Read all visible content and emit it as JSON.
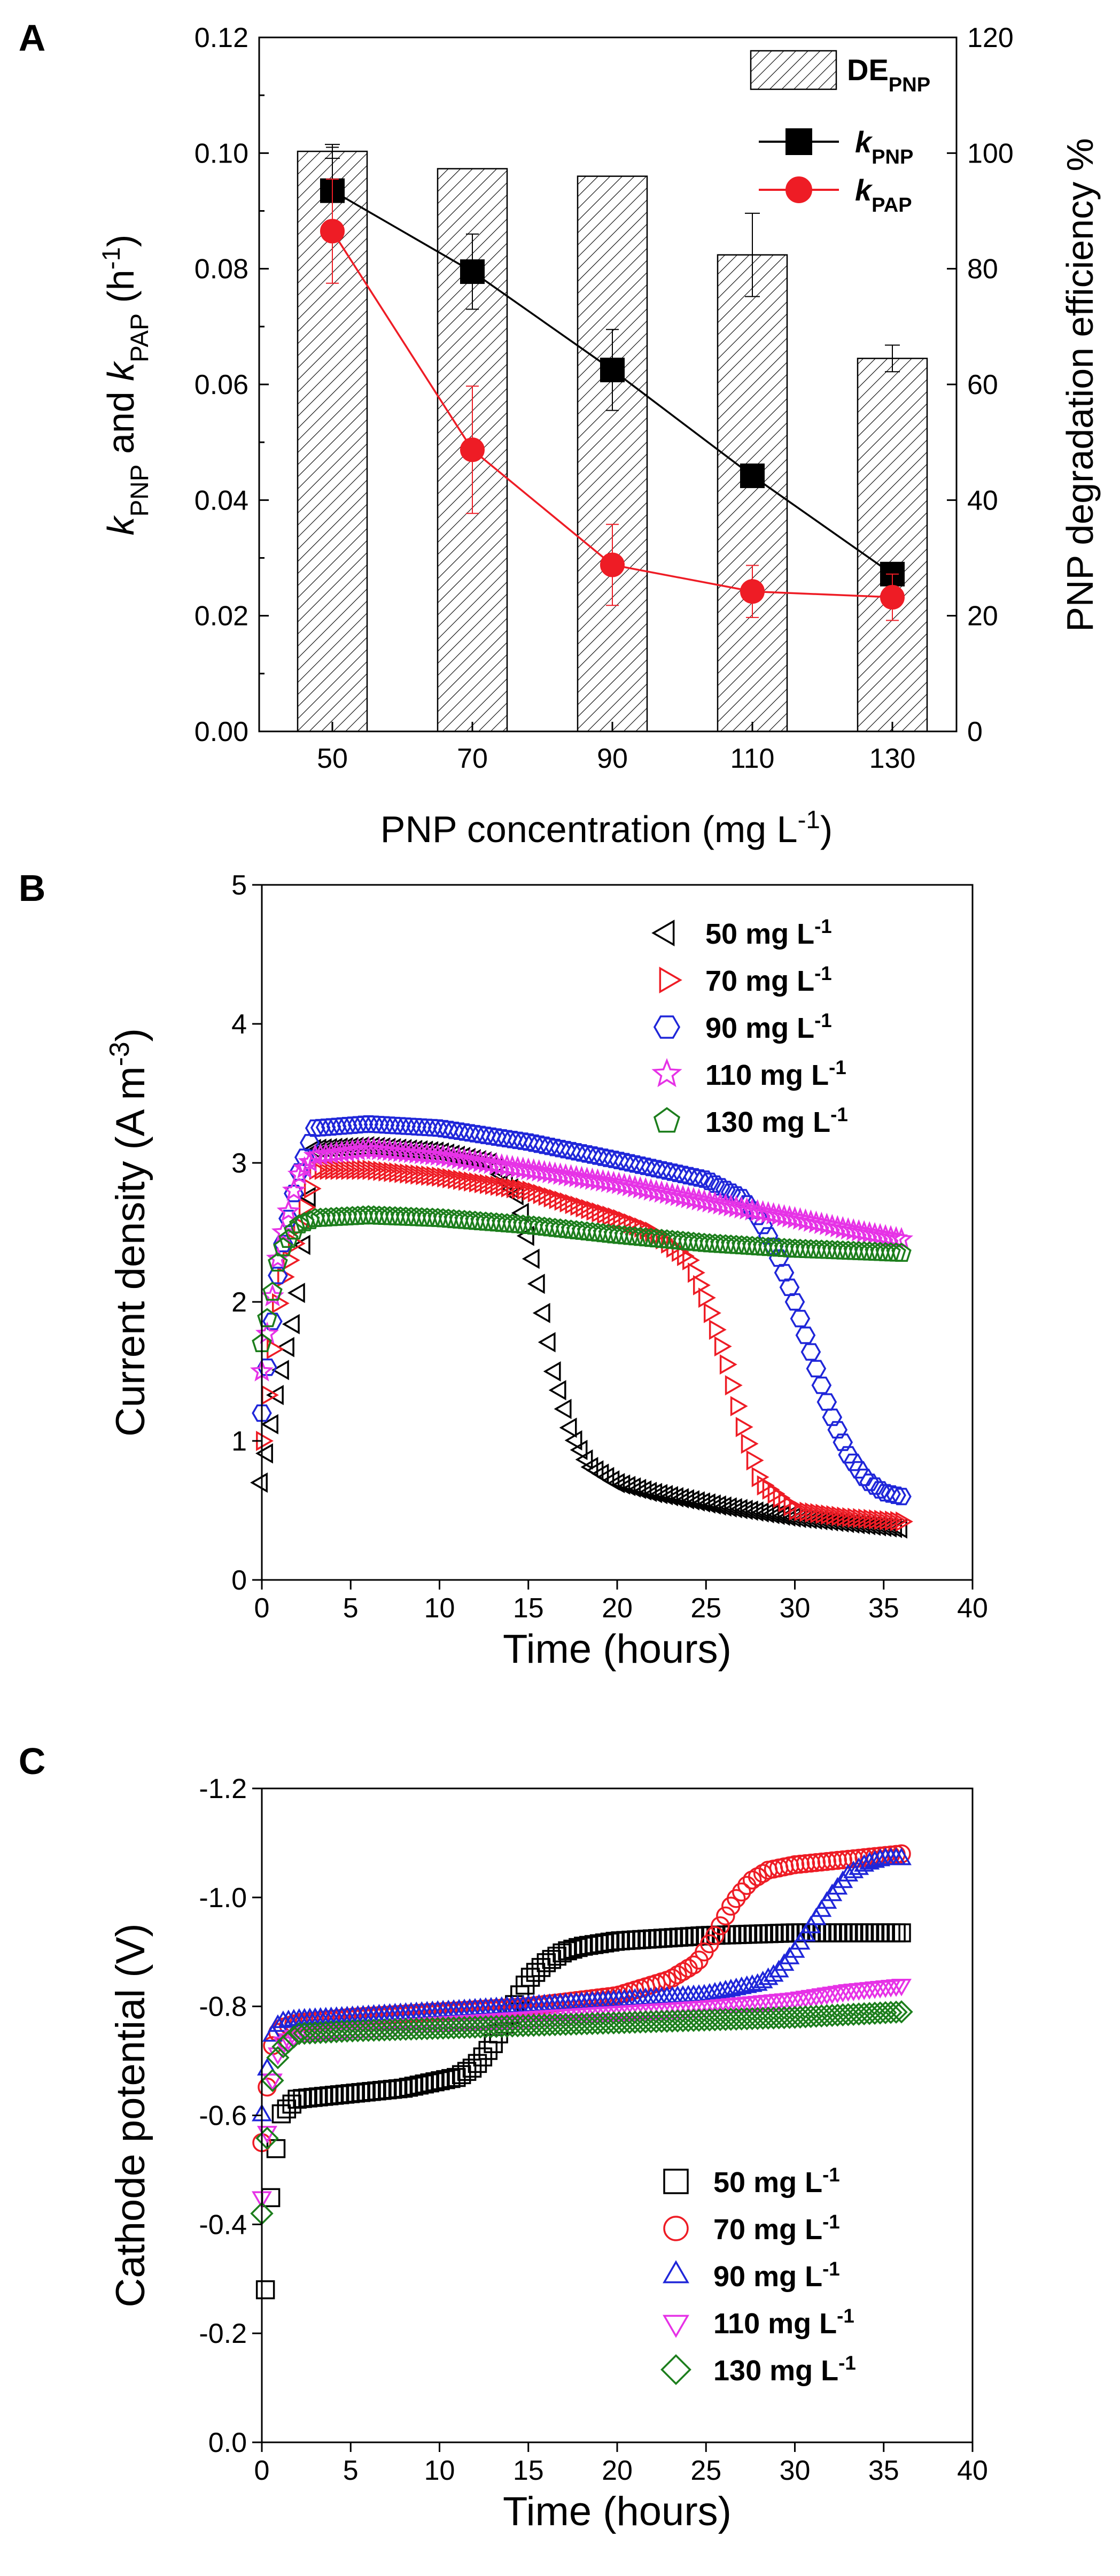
{
  "colors": {
    "axis": "#000000",
    "black": "#000000",
    "red": "#ee1c25",
    "blue": "#1f26d9",
    "magenta": "#e632e6",
    "green": "#1c7e1c"
  },
  "panel_labels": [
    "A",
    "B",
    "C"
  ],
  "chart_data": [
    {
      "id": "A",
      "type": "bar+line",
      "panel_label": "A",
      "xlabel": "PNP concentration (mg L⁻¹)",
      "ylabel_left": "kPNP and kPAP (h⁻¹)",
      "ylabel_left_parts": [
        "k",
        "PNP",
        " and ",
        "k",
        "PAP",
        " (h",
        "-1",
        ")"
      ],
      "ylabel_right": "PNP degradation efficiency %",
      "categories": [
        "50",
        "70",
        "90",
        "110",
        "130"
      ],
      "ylim_left": [
        0,
        0.12
      ],
      "yticks_left": [
        "0.00",
        "0.02",
        "0.04",
        "0.06",
        "0.08",
        "0.10",
        "0.12"
      ],
      "ylim_right": [
        0,
        120
      ],
      "yticks_right": [
        "0",
        "20",
        "40",
        "60",
        "80",
        "100",
        "120"
      ],
      "bars": {
        "name": "DE_PNP",
        "legend_main": "DE",
        "legend_sub": "PNP",
        "values": [
          100.3,
          97.3,
          96.0,
          82.4,
          64.5
        ],
        "errors": [
          1.2,
          0,
          0,
          7.2,
          2.3
        ]
      },
      "series": [
        {
          "name": "k_PNP",
          "legend_main": "k",
          "legend_sub": "PNP",
          "color": "#000000",
          "marker": "square",
          "values": [
            0.0935,
            0.0795,
            0.0625,
            0.0442,
            0.0272
          ],
          "errors": [
            0.0075,
            0.0065,
            0.007,
            0,
            0
          ]
        },
        {
          "name": "k_PAP",
          "legend_main": "k",
          "legend_sub": "PAP",
          "color": "#ee1c25",
          "marker": "circle",
          "values": [
            0.0865,
            0.0487,
            0.0288,
            0.0242,
            0.0232
          ],
          "errors": [
            0.009,
            0.011,
            0.007,
            0.0045,
            0.004
          ]
        }
      ]
    },
    {
      "id": "B",
      "type": "scatter",
      "panel_label": "B",
      "xlabel": "Time (hours)",
      "ylabel": "Current density (A m⁻³)",
      "ylabel_parts": [
        "Current density (A m",
        "-3",
        ")"
      ],
      "xlim": [
        0,
        40
      ],
      "ylim": [
        0,
        5
      ],
      "xticks": [
        "0",
        "5",
        "10",
        "15",
        "20",
        "25",
        "30",
        "35",
        "40"
      ],
      "yticks": [
        "0",
        "1",
        "2",
        "3",
        "4",
        "5"
      ],
      "legend": [
        "50 mg L⁻¹",
        "70 mg L⁻¹",
        "90 mg L⁻¹",
        "110 mg L⁻¹",
        "130 mg L⁻¹"
      ],
      "legend_unit_sup": "-1",
      "series": [
        {
          "name": "50 mg L-1",
          "legend_main": "50 mg L",
          "color": "#000000",
          "marker": "triangle-left",
          "x": [
            0,
            1,
            2,
            3,
            6,
            10,
            13,
            14.5,
            15.5,
            16.5,
            17.5,
            18.5,
            20,
            22,
            24,
            26,
            30,
            36
          ],
          "y": [
            0.7,
            1.4,
            1.95,
            3.1,
            3.12,
            3.08,
            3.0,
            2.75,
            2.2,
            1.5,
            1.05,
            0.82,
            0.7,
            0.63,
            0.58,
            0.53,
            0.45,
            0.37
          ]
        },
        {
          "name": "70 mg L-1",
          "legend_main": "70 mg L",
          "color": "#ee1c25",
          "marker": "triangle-right",
          "x": [
            0,
            1,
            2,
            3,
            6,
            10,
            15,
            20,
            22,
            24,
            25,
            26,
            27,
            28,
            30,
            33,
            36
          ],
          "y": [
            1.0,
            2.1,
            2.5,
            2.95,
            2.95,
            2.9,
            2.8,
            2.6,
            2.5,
            2.3,
            2.0,
            1.6,
            1.1,
            0.7,
            0.5,
            0.45,
            0.42
          ]
        },
        {
          "name": "90 mg L-1",
          "legend_main": "90 mg L",
          "color": "#1f26d9",
          "marker": "hexagon",
          "x": [
            0,
            1,
            2,
            3,
            6,
            10,
            15,
            20,
            25,
            27,
            28,
            29,
            30,
            31,
            32,
            33,
            34,
            35,
            36
          ],
          "y": [
            1.2,
            2.3,
            2.9,
            3.25,
            3.28,
            3.25,
            3.15,
            3.02,
            2.88,
            2.75,
            2.6,
            2.35,
            2.0,
            1.6,
            1.2,
            0.9,
            0.72,
            0.63,
            0.6
          ]
        },
        {
          "name": "110 mg L-1",
          "legend_main": "110 mg L",
          "color": "#e632e6",
          "marker": "star",
          "x": [
            0,
            1,
            2,
            3,
            6,
            10,
            15,
            20,
            25,
            30,
            33,
            36
          ],
          "y": [
            1.5,
            2.4,
            2.9,
            3.05,
            3.1,
            3.05,
            2.95,
            2.85,
            2.72,
            2.6,
            2.52,
            2.45
          ]
        },
        {
          "name": "130 mg L-1",
          "legend_main": "130 mg L",
          "color": "#1c7e1c",
          "marker": "pentagon",
          "x": [
            0,
            0.5,
            1,
            2,
            3,
            6,
            10,
            15,
            20,
            25,
            30,
            36
          ],
          "y": [
            1.7,
            2.0,
            2.35,
            2.55,
            2.6,
            2.62,
            2.6,
            2.55,
            2.48,
            2.42,
            2.38,
            2.35
          ]
        }
      ]
    },
    {
      "id": "C",
      "type": "scatter",
      "panel_label": "C",
      "xlabel": "Time (hours)",
      "ylabel": "Cathode potential (V)",
      "xlim": [
        0,
        40
      ],
      "ylim": [
        0,
        -1.2
      ],
      "xticks": [
        "0",
        "5",
        "10",
        "15",
        "20",
        "25",
        "30",
        "35",
        "40"
      ],
      "yticks": [
        "0.0",
        "-0.2",
        "-0.4",
        "-0.6",
        "-0.8",
        "-1.0",
        "-1.2"
      ],
      "legend": [
        "50 mg L⁻¹",
        "70 mg L⁻¹",
        "90 mg L⁻¹",
        "110 mg L⁻¹",
        "130 mg L⁻¹"
      ],
      "legend_unit_sup": "-1",
      "series": [
        {
          "name": "50 mg L-1",
          "legend_main": "50 mg L",
          "color": "#000000",
          "marker": "square",
          "x": [
            0.2,
            0.5,
            1,
            2,
            5,
            8,
            11,
            12,
            13,
            14,
            15,
            16,
            17,
            18,
            20,
            25,
            30,
            36
          ],
          "y": [
            -0.28,
            -0.45,
            -0.6,
            -0.63,
            -0.64,
            -0.65,
            -0.67,
            -0.69,
            -0.73,
            -0.79,
            -0.85,
            -0.88,
            -0.9,
            -0.91,
            -0.92,
            -0.93,
            -0.935,
            -0.935
          ]
        },
        {
          "name": "70 mg L-1",
          "legend_main": "70 mg L",
          "color": "#ee1c25",
          "marker": "circle",
          "x": [
            0,
            0.5,
            1,
            2,
            5,
            10,
            15,
            20,
            23,
            24.5,
            25.5,
            26.5,
            27.5,
            28.5,
            30,
            33,
            36
          ],
          "y": [
            -0.55,
            -0.72,
            -0.76,
            -0.77,
            -0.78,
            -0.79,
            -0.8,
            -0.82,
            -0.85,
            -0.88,
            -0.93,
            -0.99,
            -1.03,
            -1.05,
            -1.06,
            -1.07,
            -1.08
          ]
        },
        {
          "name": "90 mg L-1",
          "legend_main": "90 mg L",
          "color": "#1f26d9",
          "marker": "triangle-up",
          "x": [
            0,
            0.5,
            1,
            2,
            5,
            10,
            15,
            20,
            25,
            28,
            29,
            30,
            31,
            32,
            33,
            34,
            35,
            36
          ],
          "y": [
            -0.6,
            -0.74,
            -0.77,
            -0.775,
            -0.78,
            -0.79,
            -0.8,
            -0.81,
            -0.82,
            -0.84,
            -0.86,
            -0.9,
            -0.95,
            -1.0,
            -1.04,
            -1.06,
            -1.07,
            -1.07
          ]
        },
        {
          "name": "110 mg L-1",
          "legend_main": "110 mg L",
          "color": "#e632e6",
          "marker": "triangle-down",
          "x": [
            0,
            0.5,
            1,
            2,
            5,
            10,
            15,
            20,
            25,
            30,
            33,
            36
          ],
          "y": [
            -0.45,
            -0.65,
            -0.73,
            -0.75,
            -0.76,
            -0.77,
            -0.78,
            -0.79,
            -0.8,
            -0.815,
            -0.83,
            -0.84
          ]
        },
        {
          "name": "130 mg L-1",
          "legend_main": "130 mg L",
          "color": "#1c7e1c",
          "marker": "diamond",
          "x": [
            0,
            0.5,
            1,
            2,
            5,
            10,
            15,
            20,
            25,
            30,
            33,
            36
          ],
          "y": [
            -0.42,
            -0.65,
            -0.72,
            -0.75,
            -0.755,
            -0.76,
            -0.765,
            -0.77,
            -0.775,
            -0.78,
            -0.785,
            -0.79
          ]
        }
      ]
    }
  ]
}
